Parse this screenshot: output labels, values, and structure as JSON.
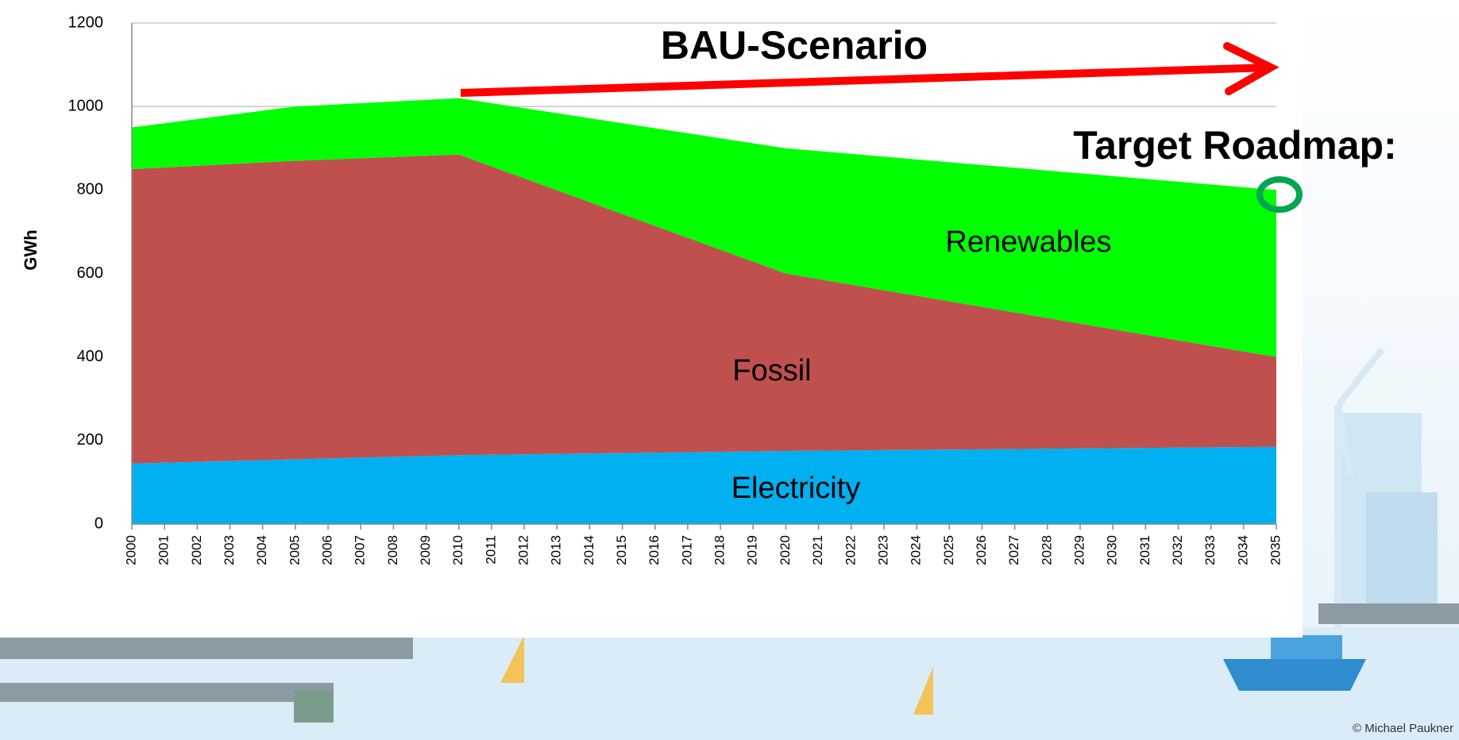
{
  "chart_data": {
    "type": "stacked-area",
    "y_label": "GWh",
    "annotations": [
      "BAU-Scenario",
      "Target Roadmap:"
    ],
    "credit": "© Michael Paukner",
    "x": [
      2000,
      2005,
      2010,
      2020,
      2035
    ],
    "xlim": [
      2000,
      2035
    ],
    "xticks": [
      2000,
      2001,
      2002,
      2003,
      2004,
      2005,
      2006,
      2007,
      2008,
      2009,
      2010,
      2011,
      2012,
      2013,
      2014,
      2015,
      2016,
      2017,
      2018,
      2019,
      2020,
      2021,
      2022,
      2023,
      2024,
      2025,
      2026,
      2027,
      2028,
      2029,
      2030,
      2031,
      2032,
      2033,
      2034,
      2035
    ],
    "ylim": [
      0,
      1200
    ],
    "yticks": [
      0,
      200,
      400,
      600,
      800,
      1000,
      1200
    ],
    "grid": true,
    "series": [
      {
        "name": "Electricity",
        "color": "#00b0f0",
        "values": [
          145,
          155,
          165,
          175,
          185
        ]
      },
      {
        "name": "Fossil",
        "color": "#c0504d",
        "values": [
          705,
          715,
          720,
          425,
          215
        ]
      },
      {
        "name": "Renewables",
        "color": "#00ff00",
        "values": [
          100,
          130,
          135,
          300,
          400
        ]
      }
    ]
  }
}
